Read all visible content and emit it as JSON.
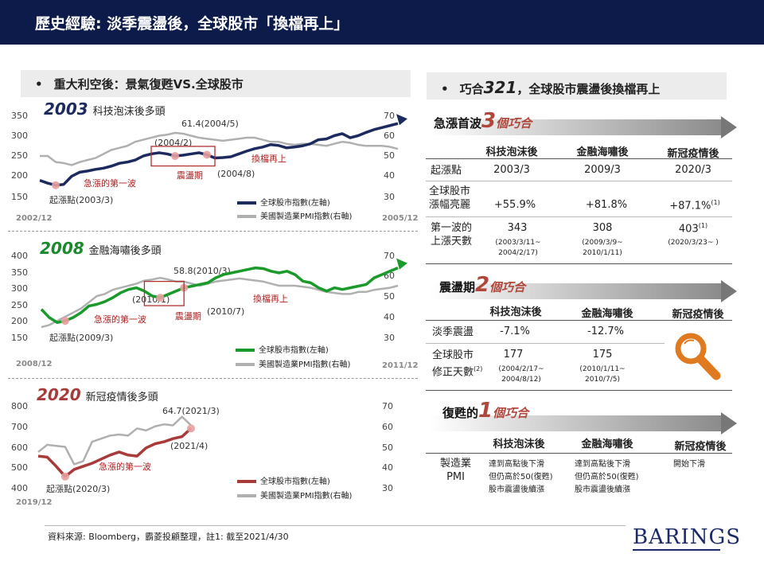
{
  "header": {
    "title": "歷史經驗: 淡季震盪後，全球股市「換檔再上」"
  },
  "left_section": {
    "bullet": "•",
    "title": "重大利空後：景氣復甦VS.全球股市"
  },
  "right_section": {
    "bullet": "•",
    "title_pre": "巧合",
    "title_num": "321",
    "title_post": "，全球股市震盪後換檔再上"
  },
  "chart_data": [
    {
      "type": "line",
      "title_year": "2003",
      "title_text": "科技泡沫後多頭",
      "title_color": "#1c2a5e",
      "y_left_ticks": [
        "350",
        "300",
        "250",
        "200",
        "150"
      ],
      "y_right_ticks": [
        "70",
        "60",
        "50",
        "40",
        "30"
      ],
      "start_label": "2002/12",
      "end_label": "2005/12",
      "series": [
        {
          "name": "全球股市指數(左軸)",
          "color": "#1c2a5e",
          "values": [
            190,
            183,
            178,
            180,
            200,
            210,
            213,
            217,
            220,
            225,
            232,
            235,
            240,
            250,
            255,
            258,
            255,
            250,
            252,
            255,
            258,
            253,
            245,
            246,
            248,
            255,
            262,
            268,
            272,
            278,
            276,
            270,
            272,
            275,
            280,
            290,
            292,
            300,
            305,
            295,
            300,
            308,
            315,
            320,
            325,
            330
          ]
        },
        {
          "name": "美國製造業PMI指數(右軸)",
          "color": "#b0b0b0",
          "values": [
            50,
            50,
            47,
            46.5,
            45.5,
            47,
            48,
            49,
            51,
            53,
            54,
            55,
            57,
            58,
            59,
            60,
            60.5,
            61.4,
            61,
            60,
            59,
            58.5,
            58,
            57.5,
            58,
            58.5,
            59,
            59,
            58,
            57,
            57,
            56,
            55.5,
            56,
            56,
            55.5,
            55,
            56,
            57,
            56.5,
            55.5,
            55,
            55,
            55,
            54.5,
            53.5
          ]
        }
      ],
      "annotations": {
        "peak": "61.4(2004/5)",
        "start": "(2004/2)",
        "end": "(2004/8)",
        "first_wave": "急漲的第一波",
        "shake": "震盪期",
        "upshift": "換檔再上",
        "origin": "起漲點(2003/3)"
      }
    },
    {
      "type": "line",
      "title_year": "2008",
      "title_text": "金融海嘯後多頭",
      "title_color": "#1a8a2a",
      "y_left_ticks": [
        "400",
        "350",
        "300",
        "250",
        "200",
        "150"
      ],
      "y_right_ticks": [
        "70",
        "60",
        "50",
        "40",
        "30"
      ],
      "start_label": "2008/12",
      "end_label": "2011/12",
      "series": [
        {
          "name": "全球股市指數(左軸)",
          "color": "#1a9a2a",
          "values": [
            235,
            210,
            195,
            200,
            210,
            225,
            245,
            250,
            258,
            270,
            285,
            295,
            300,
            290,
            275,
            270,
            280,
            290,
            300,
            305,
            310,
            315,
            330,
            340,
            345,
            350,
            355,
            360,
            358,
            350,
            345,
            350,
            340,
            320,
            315,
            300,
            290,
            300,
            295,
            300,
            305,
            310,
            330,
            340,
            350,
            360
          ]
        },
        {
          "name": "美國製造業PMI指數(右軸)",
          "color": "#b0b0b0",
          "values": [
            35,
            36,
            38,
            40,
            42,
            44,
            47,
            50,
            51,
            53,
            54,
            55,
            56,
            57.5,
            58,
            58.8,
            58,
            57,
            57,
            56,
            55,
            56,
            57,
            57.5,
            58,
            58.5,
            58,
            57.5,
            57,
            56,
            55,
            55,
            55,
            54.5,
            54,
            53,
            52,
            51.5,
            51,
            51,
            52,
            52,
            53,
            53.5,
            54,
            55
          ]
        }
      ],
      "annotations": {
        "peak": "58.8(2010/3)",
        "start": "(2010/1)",
        "end": "(2010/7)",
        "first_wave": "急漲的第一波",
        "shake": "震盪期",
        "upshift": "換檔再上",
        "origin": "起漲點(2009/3)"
      }
    },
    {
      "type": "line",
      "title_year": "2020",
      "title_text": "新冠疫情後多頭",
      "title_color": "#a83a3a",
      "y_left_ticks": [
        "800",
        "700",
        "600",
        "500",
        "400"
      ],
      "y_right_ticks": [
        "70",
        "60",
        "50",
        "40",
        "30"
      ],
      "start_label": "2019/12",
      "end_label": "",
      "series": [
        {
          "name": "全球股市指數(左軸)",
          "color": "#a83a3a",
          "values": [
            555,
            550,
            505,
            455,
            490,
            505,
            520,
            540,
            560,
            575,
            560,
            555,
            595,
            615,
            625,
            640,
            650,
            690
          ]
        },
        {
          "name": "美國製造業PMI指數(右軸)",
          "color": "#b0b0b0",
          "values": [
            47.5,
            51,
            50.5,
            50,
            41.5,
            43,
            52.5,
            54,
            55.5,
            56,
            55.5,
            59,
            58,
            60,
            61,
            60.5,
            64.7,
            60.5
          ]
        }
      ],
      "annotations": {
        "peak": "64.7(2021/3)",
        "end": "(2021/4)",
        "first_wave": "急漲的第一波",
        "origin": "起漲點(2020/3)"
      }
    }
  ],
  "panel1": {
    "title_pre": "急漲首波",
    "title_num": "3",
    "title_post": "個巧合",
    "cols": [
      "科技泡沫後",
      "金融海嘯後",
      "新冠疫情後"
    ],
    "rows": [
      {
        "label": "起漲點",
        "values": [
          "2003/3",
          "2009/3",
          "2020/3"
        ]
      },
      {
        "label_line1": "全球股市",
        "label_line2": "漲幅亮麗",
        "values": [
          "+55.9%",
          "+81.8%",
          "+87.1%"
        ],
        "note": "(1)"
      },
      {
        "label_line1": "第一波的",
        "label_line2": "上漲天數",
        "values": [
          "343",
          "308",
          "403"
        ],
        "note": "(1)",
        "subs": [
          [
            "(2003/3/11~",
            "2004/2/17)"
          ],
          [
            "(2009/3/9~",
            "2010/1/11)"
          ],
          [
            "(2020/3/23~ )",
            ""
          ]
        ]
      }
    ]
  },
  "panel2": {
    "title_pre": "震盪期",
    "title_num": "2",
    "title_post": "個巧合",
    "cols": [
      "科技泡沫後",
      "金融海嘯後",
      "新冠疫情後"
    ],
    "rows": [
      {
        "label": "淡季震盪",
        "values": [
          "-7.1%",
          "-12.7%"
        ]
      },
      {
        "label_line1": "全球股市",
        "label_line2": "修正天數",
        "note": "(2)",
        "values": [
          "177",
          "175"
        ],
        "subs": [
          [
            "(2004/2/17~",
            "2004/8/12)"
          ],
          [
            "(2010/1/11~",
            "2010/7/5)"
          ]
        ]
      }
    ]
  },
  "panel3": {
    "title_pre": "復甦的",
    "title_num": "1",
    "title_post": "個巧合",
    "cols": [
      "科技泡沫後",
      "金融海嘯後",
      "新冠疫情後"
    ],
    "row_label_line1": "製造業",
    "row_label_line2": "PMI",
    "cells": [
      [
        "達到高點後下滑",
        "但仍高於50(復甦)",
        "股市震盪後續漲"
      ],
      [
        "達到高點後下滑",
        "但仍高於50(復甦)",
        "股市震盪後續漲"
      ],
      [
        "開始下滑",
        "",
        ""
      ]
    ]
  },
  "footer": {
    "source": "資料來源: Bloomberg，霸菱投顧整理，註1:  截至2021/4/30",
    "logo": "BARINGS"
  },
  "colors": {
    "navy": "#0d1b4a",
    "accent": "#b0473a"
  },
  "icons": {
    "magnifier": "magnifier-icon"
  }
}
